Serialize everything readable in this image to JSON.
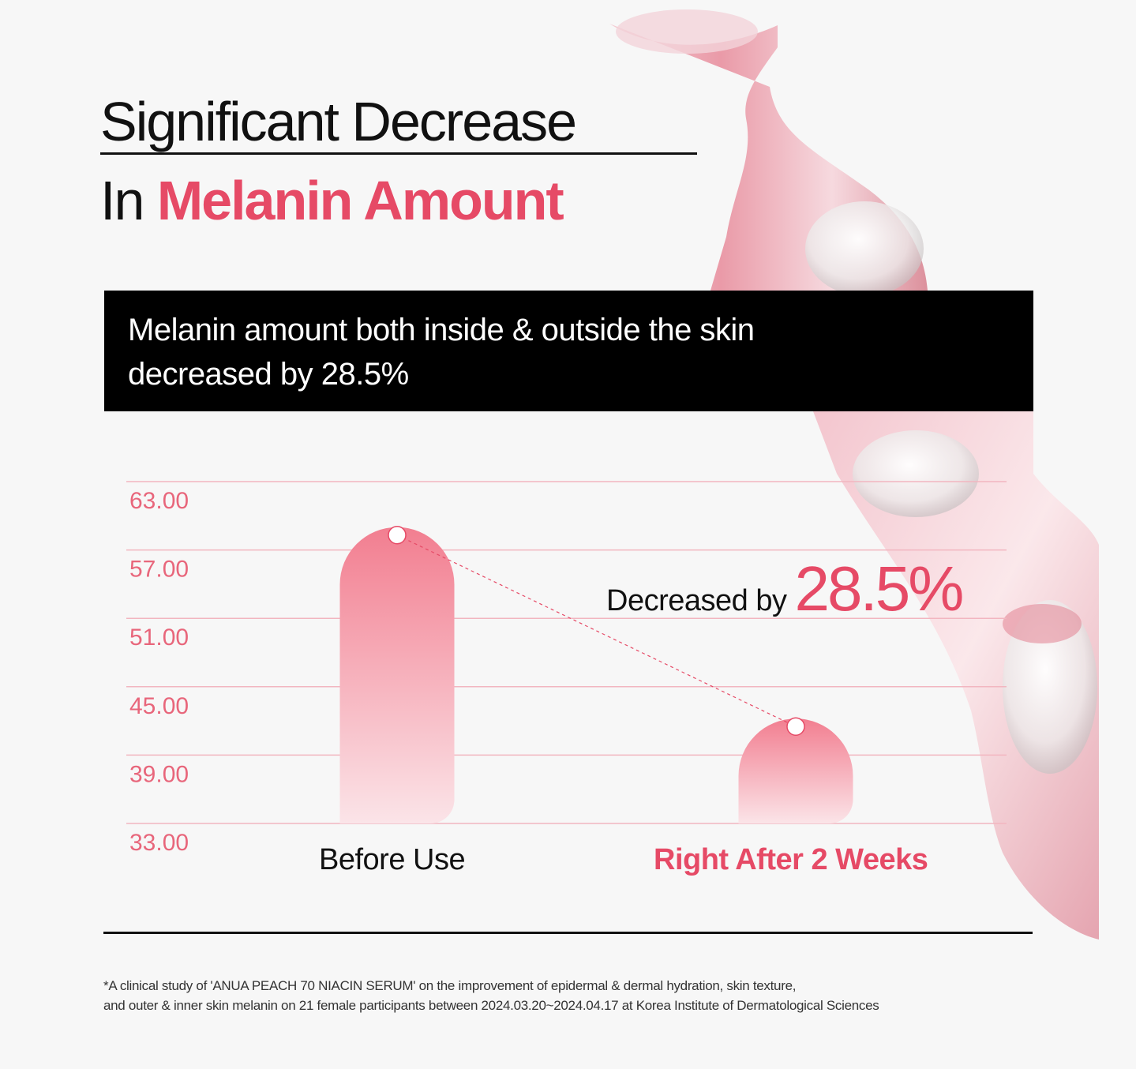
{
  "title": {
    "line1": "Significant Decrease",
    "line2_prefix": "In",
    "line2_accent": "Melanin Amount"
  },
  "banner": {
    "line1": "Melanin amount both inside & outside the skin",
    "line2": "decreased by 28.5%"
  },
  "chart_data": {
    "type": "bar",
    "categories": [
      "Before Use",
      "Right After 2 Weeks"
    ],
    "values": [
      59.0,
      42.2
    ],
    "yticks": [
      "63.00",
      "57.00",
      "51.00",
      "45.00",
      "39.00",
      "33.00"
    ],
    "ylim": [
      33,
      63
    ],
    "grid": true,
    "annotation": {
      "prefix": "Decreased by",
      "value": "28.5%"
    },
    "colors": {
      "bar_top": "#f27e90",
      "bar_bottom": "#fbe4e8",
      "accent": "#e64a66",
      "grid": "#f2b6c0"
    }
  },
  "footnote": {
    "line1": "*A clinical study of 'ANUA PEACH 70 NIACIN SERUM' on the improvement of epidermal & dermal hydration, skin texture,",
    "line2": "and outer & inner skin melanin on 21 female participants between 2024.03.20~2024.04.17 at Korea Institute of Dermatological Sciences"
  }
}
